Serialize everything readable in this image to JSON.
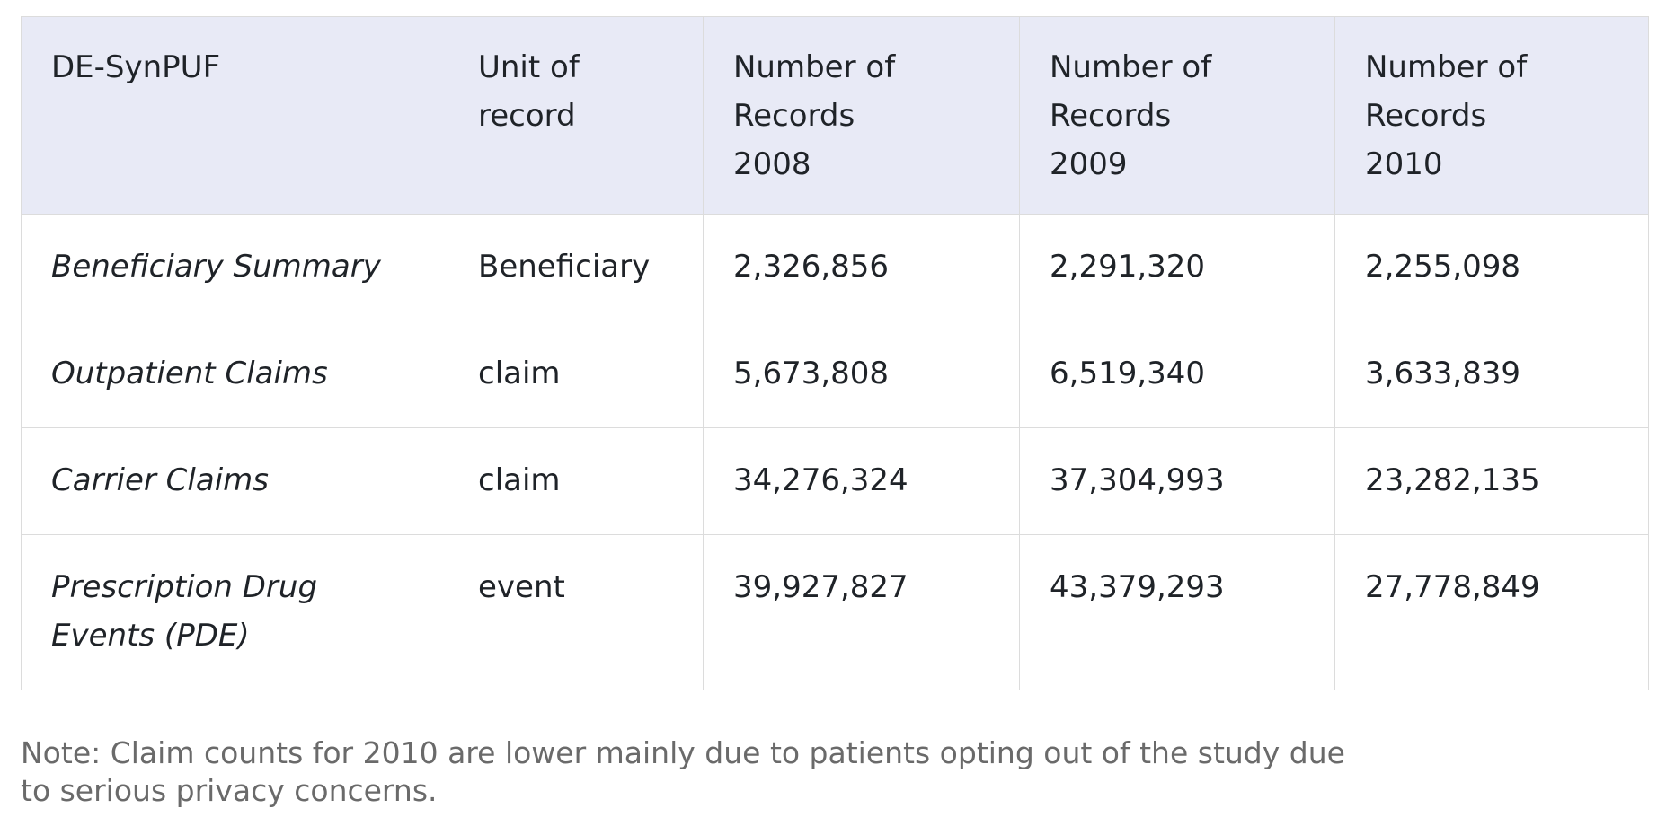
{
  "table": {
    "headers": {
      "dataset": "DE-SynPUF",
      "unit": [
        "Unit of",
        "record"
      ],
      "y2008": [
        "Number of",
        "Records",
        "2008"
      ],
      "y2009": [
        "Number of",
        "Records",
        "2009"
      ],
      "y2010": [
        "Number of",
        "Records",
        "2010"
      ]
    },
    "rows": [
      {
        "dataset": "Beneficiary Summary",
        "unit": "Beneficiary",
        "y2008": "2,326,856",
        "y2009": "2,291,320",
        "y2010": "2,255,098"
      },
      {
        "dataset": "Outpatient Claims",
        "unit": "claim",
        "y2008": "5,673,808",
        "y2009": "6,519,340",
        "y2010": "3,633,839"
      },
      {
        "dataset": "Carrier Claims",
        "unit": "claim",
        "y2008": "34,276,324",
        "y2009": "37,304,993",
        "y2010": "23,282,135"
      },
      {
        "dataset": "Prescription Drug Events (PDE)",
        "unit": "event",
        "y2008": "39,927,827",
        "y2009": "43,379,293",
        "y2010": "27,778,849"
      }
    ]
  },
  "note": "Note: Claim counts for 2010 are lower mainly due to patients opting out of the study due to serious privacy concerns."
}
